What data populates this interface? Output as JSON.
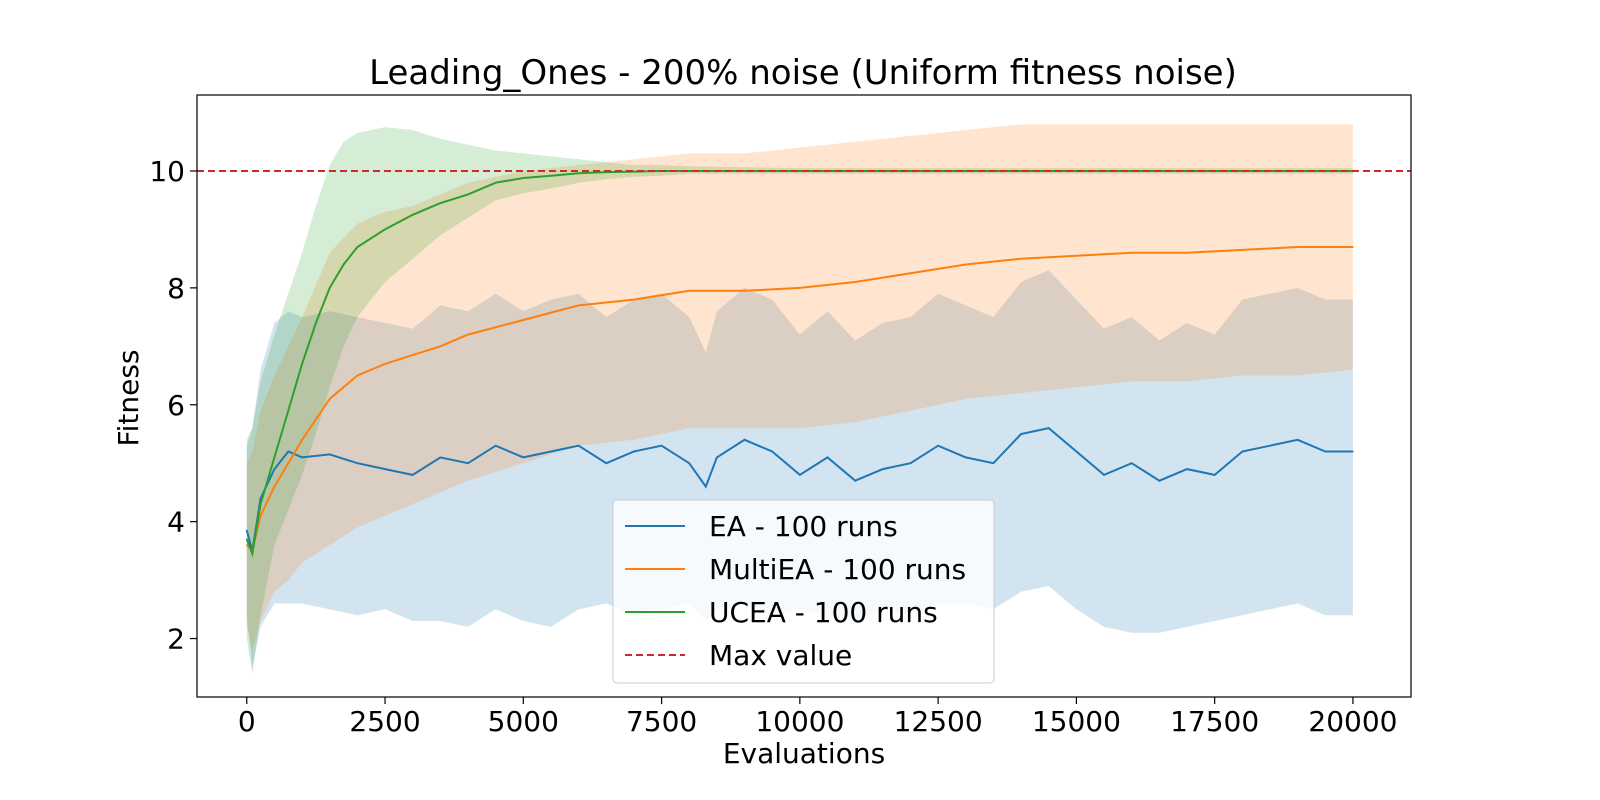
{
  "chart_data": {
    "type": "line",
    "title": "Leading_Ones - 200% noise (Uniform fitness noise)",
    "xlabel": "Evaluations",
    "ylabel": "Fitness",
    "xlim": [
      -900,
      21050
    ],
    "ylim": [
      1.0,
      11.3
    ],
    "xticks": [
      0,
      2500,
      5000,
      7500,
      10000,
      12500,
      15000,
      17500,
      20000
    ],
    "xtick_labels": [
      "0",
      "2500",
      "5000",
      "7500",
      "10000",
      "12500",
      "15000",
      "17500",
      "20000"
    ],
    "yticks": [
      2,
      4,
      6,
      8,
      10
    ],
    "ytick_labels": [
      "2",
      "4",
      "6",
      "8",
      "10"
    ],
    "grid": false,
    "legend_position": "lower-center",
    "max_value": {
      "y": 10,
      "label": "Max value",
      "color": "#d62728",
      "style": "dashed"
    },
    "series": [
      {
        "name": "EA - 100 runs",
        "color": "#1f77b4",
        "x": [
          0,
          100,
          250,
          500,
          750,
          1000,
          1500,
          2000,
          2500,
          3000,
          3500,
          4000,
          4500,
          5000,
          5500,
          6000,
          6500,
          7000,
          7500,
          8000,
          8300,
          8500,
          9000,
          9500,
          10000,
          10500,
          11000,
          11500,
          12000,
          12500,
          13000,
          13500,
          14000,
          14500,
          15000,
          15500,
          16000,
          16500,
          17000,
          17500,
          18000,
          18500,
          19000,
          19500,
          20000
        ],
        "y": [
          3.85,
          3.5,
          4.4,
          4.9,
          5.2,
          5.1,
          5.15,
          5.0,
          4.9,
          4.8,
          5.1,
          5.0,
          5.3,
          5.1,
          5.2,
          5.3,
          5.0,
          5.2,
          5.3,
          5.0,
          4.6,
          5.1,
          5.4,
          5.2,
          4.8,
          5.1,
          4.7,
          4.9,
          5.0,
          5.3,
          5.1,
          5.0,
          5.5,
          5.6,
          5.2,
          4.8,
          5.0,
          4.7,
          4.9,
          4.8,
          5.2,
          5.3,
          5.4,
          5.2,
          5.2
        ],
        "lower": [
          2.4,
          1.5,
          2.2,
          2.6,
          2.6,
          2.6,
          2.5,
          2.4,
          2.5,
          2.3,
          2.3,
          2.2,
          2.5,
          2.3,
          2.2,
          2.5,
          2.6,
          2.4,
          2.5,
          2.6,
          2.3,
          2.5,
          2.6,
          2.4,
          2.5,
          2.4,
          2.3,
          2.5,
          2.4,
          2.6,
          2.6,
          2.5,
          2.8,
          2.9,
          2.5,
          2.2,
          2.1,
          2.1,
          2.2,
          2.3,
          2.4,
          2.5,
          2.6,
          2.4,
          2.4
        ],
        "upper": [
          5.3,
          5.6,
          6.6,
          7.4,
          7.6,
          7.5,
          7.6,
          7.5,
          7.4,
          7.3,
          7.7,
          7.6,
          7.9,
          7.6,
          7.8,
          7.9,
          7.5,
          7.8,
          7.9,
          7.5,
          6.9,
          7.6,
          8.0,
          7.8,
          7.2,
          7.6,
          7.1,
          7.4,
          7.5,
          7.9,
          7.7,
          7.5,
          8.1,
          8.3,
          7.8,
          7.3,
          7.5,
          7.1,
          7.4,
          7.2,
          7.8,
          7.9,
          8.0,
          7.8,
          7.8
        ]
      },
      {
        "name": "MultiEA - 100 runs",
        "color": "#ff7f0e",
        "x": [
          0,
          100,
          250,
          500,
          750,
          1000,
          1500,
          2000,
          2500,
          3000,
          3500,
          4000,
          5000,
          6000,
          7000,
          8000,
          9000,
          10000,
          11000,
          12000,
          13000,
          14000,
          15000,
          16000,
          17000,
          18000,
          19000,
          20000
        ],
        "y": [
          3.6,
          3.5,
          4.1,
          4.6,
          5.0,
          5.4,
          6.1,
          6.5,
          6.7,
          6.85,
          7.0,
          7.2,
          7.45,
          7.7,
          7.8,
          7.95,
          7.95,
          8.0,
          8.1,
          8.25,
          8.4,
          8.5,
          8.55,
          8.6,
          8.6,
          8.65,
          8.7,
          8.7
        ],
        "lower": [
          2.2,
          1.8,
          2.3,
          2.8,
          3.0,
          3.3,
          3.6,
          3.9,
          4.1,
          4.3,
          4.5,
          4.7,
          5.0,
          5.3,
          5.4,
          5.6,
          5.6,
          5.6,
          5.7,
          5.9,
          6.1,
          6.2,
          6.3,
          6.4,
          6.4,
          6.5,
          6.5,
          6.6
        ],
        "upper": [
          5.0,
          5.2,
          5.9,
          6.5,
          7.0,
          7.5,
          8.6,
          9.1,
          9.3,
          9.4,
          9.6,
          9.8,
          10.0,
          10.1,
          10.2,
          10.3,
          10.3,
          10.4,
          10.5,
          10.6,
          10.7,
          10.8,
          10.8,
          10.8,
          10.8,
          10.8,
          10.8,
          10.8
        ]
      },
      {
        "name": "UCEA - 100 runs",
        "color": "#2ca02c",
        "x": [
          0,
          100,
          250,
          500,
          750,
          1000,
          1250,
          1500,
          1750,
          2000,
          2500,
          3000,
          3500,
          4000,
          4500,
          5000,
          5500,
          6000,
          6500,
          7000,
          7500,
          8000,
          10000,
          12500,
          15000,
          17500,
          20000
        ],
        "y": [
          3.7,
          3.45,
          4.3,
          5.1,
          5.9,
          6.7,
          7.4,
          8.0,
          8.4,
          8.7,
          9.0,
          9.25,
          9.45,
          9.6,
          9.8,
          9.88,
          9.92,
          9.96,
          9.98,
          9.99,
          10.0,
          10.0,
          10.0,
          10.0,
          10.0,
          10.0,
          10.0
        ],
        "lower": [
          2.0,
          1.4,
          2.4,
          3.6,
          4.2,
          4.8,
          5.5,
          6.3,
          7.0,
          7.5,
          8.1,
          8.5,
          8.9,
          9.2,
          9.5,
          9.62,
          9.7,
          9.8,
          9.86,
          9.9,
          9.92,
          9.95,
          9.95,
          9.95,
          9.95,
          9.95,
          9.95
        ],
        "upper": [
          5.4,
          5.6,
          6.4,
          7.2,
          7.9,
          8.6,
          9.4,
          10.1,
          10.5,
          10.65,
          10.75,
          10.7,
          10.55,
          10.45,
          10.35,
          10.3,
          10.25,
          10.2,
          10.15,
          10.1,
          10.1,
          10.08,
          10.05,
          10.05,
          10.05,
          10.05,
          10.05
        ]
      }
    ]
  }
}
